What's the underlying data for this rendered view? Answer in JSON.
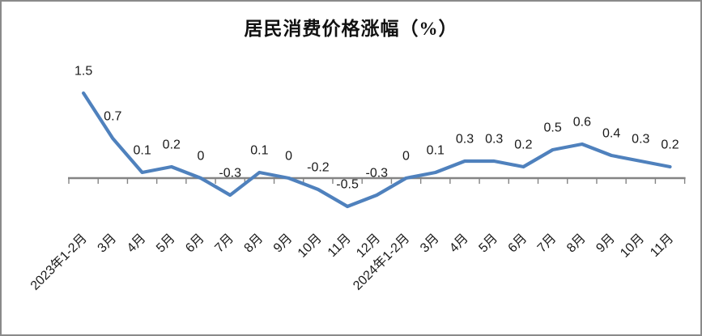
{
  "chart_data": {
    "type": "line",
    "title": "居民消费价格涨幅（%）",
    "categories": [
      "2023年1-2月",
      "3月",
      "4月",
      "5月",
      "6月",
      "7月",
      "8月",
      "9月",
      "10月",
      "11月",
      "12月",
      "2024年1-2月",
      "3月",
      "4月",
      "5月",
      "6月",
      "7月",
      "8月",
      "9月",
      "10月",
      "11月"
    ],
    "values": [
      1.5,
      0.7,
      0.1,
      0.2,
      0,
      -0.3,
      0.1,
      0,
      -0.2,
      -0.5,
      -0.3,
      0,
      0.1,
      0.3,
      0.3,
      0.2,
      0.5,
      0.6,
      0.4,
      0.3,
      0.2
    ],
    "data_labels": [
      "1.5",
      "0.7",
      "0.1",
      "0.2",
      "0",
      "-0.3",
      "0.1",
      "0",
      "-0.2",
      "-0.5",
      "-0.3",
      "0",
      "0.1",
      "0.3",
      "0.3",
      "0.2",
      "0.5",
      "0.6",
      "0.4",
      "0.3",
      "0.2"
    ],
    "xlabel": "",
    "ylabel": "",
    "ylim": [
      -1.0,
      2.0
    ],
    "grid": false,
    "legend": "none",
    "series_color": "#4F81BD",
    "axis_color": "#848484",
    "label_color": "#1a1a1a",
    "x_labels_rotation_deg": -45
  }
}
